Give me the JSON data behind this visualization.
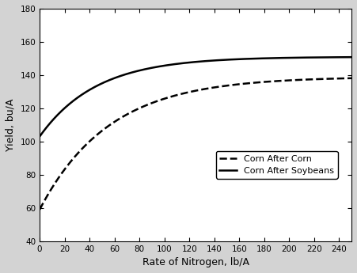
{
  "title": "",
  "xlabel": "Rate of Nitrogen, lb/A",
  "ylabel": "Yield, bu/A",
  "xlim": [
    0,
    250
  ],
  "ylim": [
    40,
    180
  ],
  "xticks": [
    0,
    20,
    40,
    60,
    80,
    100,
    120,
    140,
    160,
    180,
    200,
    220,
    240
  ],
  "yticks": [
    40,
    60,
    80,
    100,
    120,
    140,
    160,
    180
  ],
  "legend_labels": [
    "Corn After Corn",
    "Corn After Soybeans"
  ],
  "legend_linestyles": [
    "--",
    "-"
  ],
  "line_color": "#000000",
  "background_color": "#d3d3d3",
  "plot_bg_color": "#ffffff",
  "cas_params": {
    "a": 151.0,
    "b": 48.0,
    "c": 0.022
  },
  "cac_params": {
    "a": 139.0,
    "b": 80.0,
    "c": 0.018
  }
}
